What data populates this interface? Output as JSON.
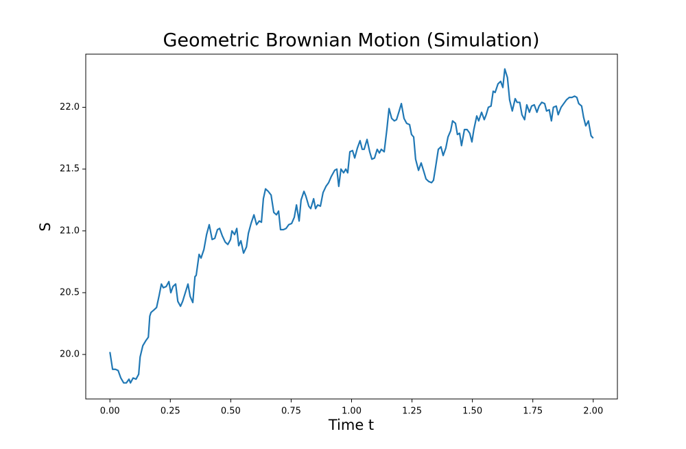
{
  "chart_data": {
    "type": "line",
    "title": "Geometric Brownian Motion (Simulation)",
    "xlabel": "Time t",
    "ylabel": "S",
    "series": [
      {
        "color": "#1f77b4",
        "x": [
          0,
          0.011,
          0.023,
          0.034,
          0.045,
          0.057,
          0.068,
          0.079,
          0.085,
          0.096,
          0.108,
          0.119,
          0.125,
          0.136,
          0.148,
          0.159,
          0.165,
          0.17,
          0.182,
          0.193,
          0.204,
          0.213,
          0.221,
          0.233,
          0.244,
          0.252,
          0.261,
          0.272,
          0.281,
          0.292,
          0.301,
          0.312,
          0.323,
          0.332,
          0.343,
          0.352,
          0.357,
          0.369,
          0.377,
          0.389,
          0.4,
          0.411,
          0.423,
          0.434,
          0.445,
          0.454,
          0.465,
          0.477,
          0.488,
          0.499,
          0.505,
          0.516,
          0.525,
          0.533,
          0.542,
          0.553,
          0.565,
          0.573,
          0.584,
          0.596,
          0.607,
          0.618,
          0.627,
          0.635,
          0.644,
          0.655,
          0.667,
          0.678,
          0.689,
          0.698,
          0.706,
          0.718,
          0.729,
          0.74,
          0.752,
          0.763,
          0.772,
          0.783,
          0.791,
          0.803,
          0.811,
          0.823,
          0.831,
          0.843,
          0.851,
          0.86,
          0.871,
          0.882,
          0.894,
          0.905,
          0.916,
          0.93,
          0.939,
          0.947,
          0.956,
          0.967,
          0.976,
          0.984,
          0.993,
          1.004,
          1.013,
          1.024,
          1.035,
          1.044,
          1.052,
          1.064,
          1.075,
          1.084,
          1.095,
          1.106,
          1.115,
          1.123,
          1.135,
          1.146,
          1.155,
          1.166,
          1.177,
          1.186,
          1.197,
          1.206,
          1.217,
          1.228,
          1.24,
          1.248,
          1.257,
          1.265,
          1.277,
          1.288,
          1.299,
          1.308,
          1.319,
          1.331,
          1.339,
          1.348,
          1.359,
          1.37,
          1.379,
          1.39,
          1.399,
          1.41,
          1.418,
          1.43,
          1.438,
          1.447,
          1.455,
          1.467,
          1.478,
          1.489,
          1.498,
          1.506,
          1.518,
          1.526,
          1.538,
          1.549,
          1.557,
          1.566,
          1.577,
          1.586,
          1.594,
          1.606,
          1.617,
          1.626,
          1.634,
          1.645,
          1.654,
          1.665,
          1.677,
          1.685,
          1.696,
          1.705,
          1.716,
          1.725,
          1.736,
          1.745,
          1.756,
          1.767,
          1.776,
          1.787,
          1.799,
          1.807,
          1.818,
          1.827,
          1.835,
          1.847,
          1.855,
          1.867,
          1.878,
          1.889,
          1.901,
          1.912,
          1.923,
          1.932,
          1.94,
          1.952,
          1.96,
          1.969,
          1.98,
          1.991,
          2.0
        ],
        "values": [
          20.02,
          19.88,
          19.88,
          19.87,
          19.81,
          19.77,
          19.77,
          19.8,
          19.77,
          19.81,
          19.8,
          19.84,
          19.98,
          20.07,
          20.11,
          20.14,
          20.31,
          20.34,
          20.36,
          20.38,
          20.48,
          20.57,
          20.54,
          20.55,
          20.59,
          20.5,
          20.55,
          20.57,
          20.43,
          20.39,
          20.43,
          20.5,
          20.57,
          20.47,
          20.42,
          20.63,
          20.64,
          20.81,
          20.78,
          20.85,
          20.97,
          21.05,
          20.93,
          20.94,
          21.01,
          21.02,
          20.96,
          20.91,
          20.89,
          20.93,
          21.0,
          20.97,
          21.02,
          20.88,
          20.92,
          20.82,
          20.87,
          20.98,
          21.06,
          21.13,
          21.05,
          21.08,
          21.07,
          21.26,
          21.34,
          21.32,
          21.29,
          21.15,
          21.13,
          21.16,
          21.01,
          21.01,
          21.02,
          21.05,
          21.06,
          21.11,
          21.21,
          21.08,
          21.25,
          21.32,
          21.28,
          21.2,
          21.18,
          21.26,
          21.18,
          21.21,
          21.2,
          21.31,
          21.36,
          21.39,
          21.44,
          21.49,
          21.5,
          21.36,
          21.5,
          21.47,
          21.5,
          21.47,
          21.64,
          21.65,
          21.59,
          21.67,
          21.73,
          21.66,
          21.66,
          21.74,
          21.64,
          21.58,
          21.59,
          21.66,
          21.63,
          21.66,
          21.64,
          21.82,
          21.99,
          21.91,
          21.89,
          21.9,
          21.97,
          22.03,
          21.91,
          21.87,
          21.86,
          21.78,
          21.76,
          21.58,
          21.49,
          21.55,
          21.48,
          21.42,
          21.4,
          21.39,
          21.41,
          21.52,
          21.66,
          21.68,
          21.61,
          21.67,
          21.76,
          21.81,
          21.89,
          21.87,
          21.78,
          21.79,
          21.69,
          21.82,
          21.82,
          21.79,
          21.72,
          21.82,
          21.93,
          21.89,
          21.96,
          21.9,
          21.94,
          22.0,
          22.01,
          22.13,
          22.12,
          22.19,
          22.21,
          22.16,
          22.31,
          22.24,
          22.06,
          21.97,
          22.07,
          22.04,
          22.04,
          21.94,
          21.9,
          22.02,
          21.96,
          22.01,
          22.02,
          21.96,
          22.01,
          22.04,
          22.03,
          21.97,
          21.98,
          21.89,
          22.0,
          22.01,
          21.94,
          22.0,
          22.03,
          22.06,
          22.08,
          22.08,
          22.09,
          22.08,
          22.03,
          22.01,
          21.92,
          21.85,
          21.89,
          21.77,
          21.75
        ]
      }
    ],
    "xlim": [
      -0.1,
      2.1
    ],
    "ylim": [
      19.64,
      22.43
    ],
    "xticks": [
      {
        "value": 0,
        "label": "0.00"
      },
      {
        "value": 0.25,
        "label": "0.25"
      },
      {
        "value": 0.5,
        "label": "0.50"
      },
      {
        "value": 0.75,
        "label": "0.75"
      },
      {
        "value": 1,
        "label": "1.00"
      },
      {
        "value": 1.25,
        "label": "1.25"
      },
      {
        "value": 1.5,
        "label": "1.50"
      },
      {
        "value": 1.75,
        "label": "1.75"
      },
      {
        "value": 2,
        "label": "2.00"
      }
    ],
    "yticks": [
      {
        "value": 20,
        "label": "20.0"
      },
      {
        "value": 20.5,
        "label": "20.5"
      },
      {
        "value": 21,
        "label": "21.0"
      },
      {
        "value": 21.5,
        "label": "21.5"
      },
      {
        "value": 22,
        "label": "22.0"
      }
    ],
    "grid": false
  }
}
